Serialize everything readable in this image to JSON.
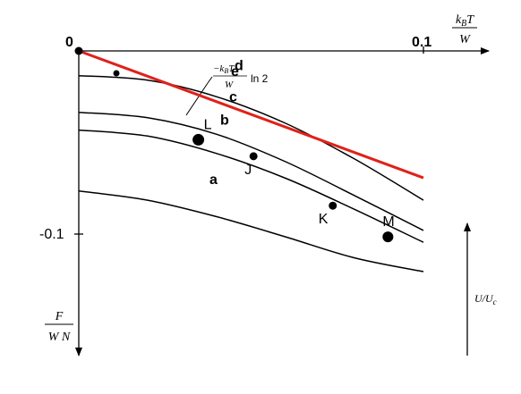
{
  "chart_data": {
    "type": "line",
    "title": "",
    "xlabel": {
      "numerator": "k_B T",
      "denominator": "W"
    },
    "ylabel": {
      "numerator": "F",
      "denominator": "W N"
    },
    "side_label": "U/U_c",
    "tick_labels": {
      "x": [
        "0.1"
      ],
      "y": [
        "0",
        "-0.1"
      ]
    },
    "xlim": [
      0,
      0.11
    ],
    "ylim": [
      -0.118,
      0.011
    ],
    "grid": false,
    "series": [
      {
        "name": "a",
        "x": [
          0.0,
          0.02,
          0.04,
          0.06,
          0.08,
          0.1
        ],
        "y": [
          -0.0765,
          -0.0815,
          -0.0905,
          -0.1015,
          -0.113,
          -0.1205
        ]
      },
      {
        "name": "b",
        "x": [
          0.0,
          0.02,
          0.04,
          0.06,
          0.08,
          0.1
        ],
        "y": [
          -0.0432,
          -0.0465,
          -0.056,
          -0.0695,
          -0.0865,
          -0.1045
        ]
      },
      {
        "name": "c",
        "x": [
          0.0,
          0.02,
          0.04,
          0.06,
          0.08,
          0.1
        ],
        "y": [
          -0.0335,
          -0.0365,
          -0.0455,
          -0.0605,
          -0.079,
          -0.098
        ]
      },
      {
        "name": "d",
        "x": [
          0.0,
          0.02,
          0.04,
          0.06,
          0.08,
          0.1
        ],
        "y": [
          -0.0135,
          -0.016,
          -0.025,
          -0.0395,
          -0.059,
          -0.0815
        ]
      },
      {
        "name": "e",
        "x": [
          0.0,
          0.1
        ],
        "y": [
          0.0,
          -0.0693
        ],
        "label": "-k_B T / W ln 2",
        "color": "#e0211b"
      }
    ],
    "points": [
      {
        "label": "L",
        "x": 0.0347,
        "y": -0.0485
      },
      {
        "label": "J",
        "x": 0.0507,
        "y": -0.0575
      },
      {
        "label": "K",
        "x": 0.0737,
        "y": -0.0845
      },
      {
        "label": "M",
        "x": 0.0897,
        "y": -0.1015
      }
    ]
  }
}
